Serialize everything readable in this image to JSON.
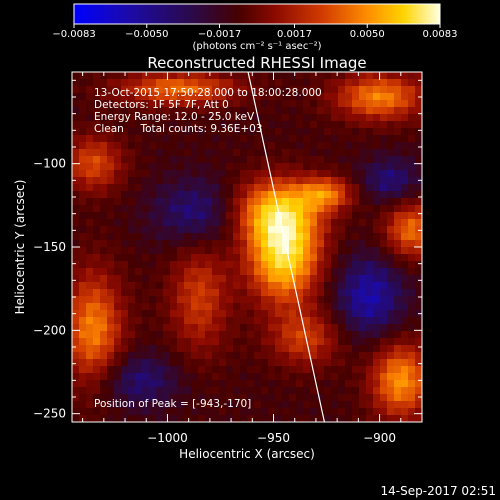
{
  "chart_data": {
    "type": "heatmap",
    "title": "Reconstructed RHESSI Image",
    "xlabel": "Heliocentric X (arcsec)",
    "ylabel": "Heliocentric Y (arcsec)",
    "xlim": [
      -1045,
      -880
    ],
    "ylim": [
      -255,
      -45
    ],
    "x_ticks": [
      -1000,
      -950,
      -900
    ],
    "y_ticks": [
      -100,
      -150,
      -200,
      -250
    ],
    "colorbar": {
      "range": [
        -0.0083,
        0.0083
      ],
      "tick_values": [
        -0.0083,
        -0.005,
        -0.0017,
        0.0017,
        0.005,
        0.0083
      ],
      "tick_labels": [
        "-0.0083",
        "-0.0050",
        "-0.0017",
        "0.0017",
        "0.0050",
        "0.0083"
      ],
      "units": "(photons cm⁻² s⁻¹ asec⁻²)"
    },
    "colormap_stops": [
      "#0000ff",
      "#1c0aa8",
      "#2a0a4a",
      "#460000",
      "#8c0a00",
      "#d23c00",
      "#ff8c00",
      "#ffd400",
      "#ffffe0"
    ],
    "peak": {
      "x": -943,
      "y": -170
    },
    "sources": [
      {
        "x": -945,
        "y": -155,
        "amplitude": 0.0088,
        "sx": 12,
        "sy": 20
      },
      {
        "x": -950,
        "y": -128,
        "amplitude": 0.0062,
        "sx": 15,
        "sy": 14
      },
      {
        "x": -925,
        "y": -118,
        "amplitude": 0.0052,
        "sx": 9,
        "sy": 7
      },
      {
        "x": -935,
        "y": -205,
        "amplitude": 0.004,
        "sx": 12,
        "sy": 12
      },
      {
        "x": -985,
        "y": -180,
        "amplitude": 0.004,
        "sx": 10,
        "sy": 25
      },
      {
        "x": -1035,
        "y": -200,
        "amplitude": 0.006,
        "sx": 10,
        "sy": 25
      },
      {
        "x": -890,
        "y": -230,
        "amplitude": 0.0065,
        "sx": 10,
        "sy": 16
      },
      {
        "x": -885,
        "y": -140,
        "amplitude": 0.0055,
        "sx": 9,
        "sy": 12
      },
      {
        "x": -900,
        "y": -60,
        "amplitude": 0.006,
        "sx": 15,
        "sy": 10
      },
      {
        "x": -995,
        "y": -55,
        "amplitude": 0.0055,
        "sx": 20,
        "sy": 7
      },
      {
        "x": -1035,
        "y": -100,
        "amplitude": 0.0045,
        "sx": 10,
        "sy": 12
      },
      {
        "x": -905,
        "y": -180,
        "amplitude": -0.004,
        "sx": 12,
        "sy": 18
      },
      {
        "x": -985,
        "y": -130,
        "amplitude": -0.0035,
        "sx": 15,
        "sy": 15
      },
      {
        "x": -895,
        "y": -110,
        "amplitude": -0.003,
        "sx": 10,
        "sy": 10
      },
      {
        "x": -1015,
        "y": -230,
        "amplitude": -0.003,
        "sx": 15,
        "sy": 12
      }
    ],
    "limb_line": [
      [
        -962,
        -45
      ],
      [
        -926,
        -255
      ]
    ]
  },
  "annotations": {
    "time": "13-Oct-2015 17:50:28.000 to 18:00:28.000",
    "detectors": "Detectors: 1F 5F 7F, Att 0",
    "energy": "Energy Range: 12.0 - 25.0 keV",
    "clean": "Clean     Total counts: 9.36E+03",
    "peak_label": "Position of Peak = [-943,-170]"
  },
  "footer": {
    "timestamp": "14-Sep-2017 02:51"
  }
}
